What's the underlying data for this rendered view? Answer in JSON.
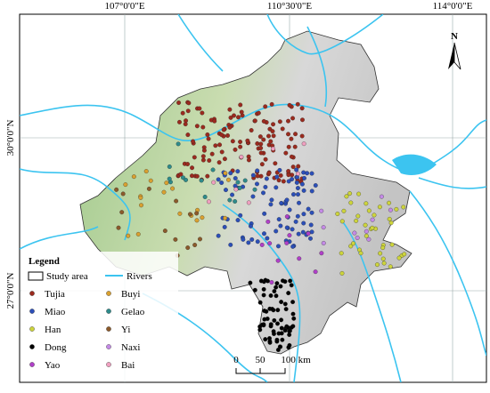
{
  "map": {
    "graticule": {
      "longitude": [
        "107°0'0\"E",
        "110°30'0\"E",
        "114°0'0\"E"
      ],
      "latitude": [
        "30°0'0\"N",
        "27°0'0\"N"
      ]
    },
    "north": "N",
    "legend": {
      "title": "Legend",
      "study_area": "Study area",
      "rivers": "Rivers",
      "groups": [
        {
          "label": "Tujia",
          "color": "#9b2a1e"
        },
        {
          "label": "Miao",
          "color": "#2c4fb8"
        },
        {
          "label": "Han",
          "color": "#cdd43c"
        },
        {
          "label": "Dong",
          "color": "#000000"
        },
        {
          "label": "Yao",
          "color": "#b040c8"
        },
        {
          "label": "Buyi",
          "color": "#d9a030"
        },
        {
          "label": "Gelao",
          "color": "#2e8b8b"
        },
        {
          "label": "Yi",
          "color": "#8b5a2b"
        },
        {
          "label": "Naxi",
          "color": "#c48ae6"
        },
        {
          "label": "Bai",
          "color": "#f0a0c0"
        }
      ]
    },
    "scale": {
      "labels": [
        "0",
        "50",
        "100 km"
      ]
    }
  }
}
